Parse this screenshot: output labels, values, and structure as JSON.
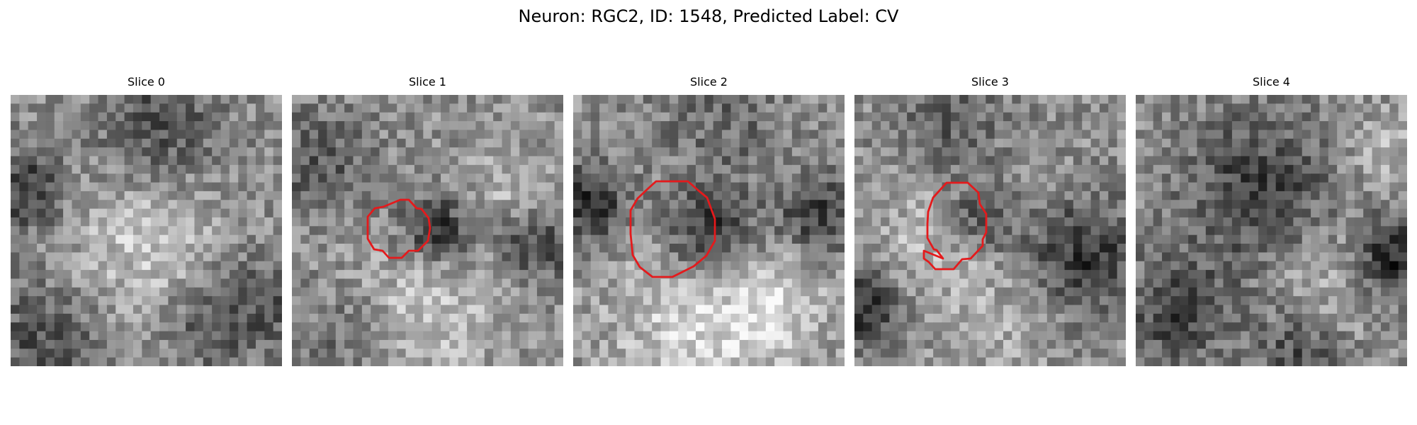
{
  "figure": {
    "title": "Neuron: RGC2, ID: 1548, Predicted Label: CV"
  },
  "panels": [
    {
      "title": "Slice 0",
      "has_contour": false
    },
    {
      "title": "Slice 1",
      "has_contour": true
    },
    {
      "title": "Slice 2",
      "has_contour": true
    },
    {
      "title": "Slice 3",
      "has_contour": true
    },
    {
      "title": "Slice 4",
      "has_contour": false
    }
  ],
  "colors": {
    "contour": "#e41a1c",
    "colormap": "gray"
  }
}
